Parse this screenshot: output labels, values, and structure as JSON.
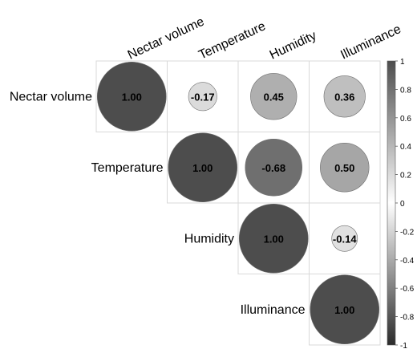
{
  "chart_data": {
    "type": "heatmap",
    "variables": [
      "Nectar volume",
      "Temperature",
      "Humidity",
      "Illuminance"
    ],
    "matrix": [
      [
        1.0,
        -0.17,
        0.45,
        0.36
      ],
      [
        -0.17,
        1.0,
        -0.68,
        0.5
      ],
      [
        0.45,
        -0.68,
        1.0,
        -0.14
      ],
      [
        0.36,
        0.5,
        -0.14,
        1.0
      ]
    ],
    "shown_triangle": "upper",
    "value_labels": [
      [
        "1.00",
        "-0.17",
        "0.45",
        "0.36"
      ],
      [
        "",
        "1.00",
        "-0.68",
        "0.50"
      ],
      [
        "",
        "",
        "1.00",
        "-0.14"
      ],
      [
        "",
        "",
        "",
        "1.00"
      ]
    ],
    "colorbar": {
      "range": [
        -1,
        1
      ],
      "ticks": [
        "1",
        "0.8",
        "0.6",
        "0.4",
        "0.2",
        "0",
        "-0.2",
        "-0.4",
        "-0.6",
        "-0.8",
        "-1"
      ],
      "tick_values": [
        1,
        0.8,
        0.6,
        0.4,
        0.2,
        0,
        -0.2,
        -0.4,
        -0.6,
        -0.8,
        -1
      ],
      "placement": "right",
      "colors": {
        "max": "#4d4d4d",
        "mid": "#ffffff",
        "min": "#2b2b2b"
      }
    },
    "title": "",
    "grid": true,
    "marker": "circle"
  }
}
